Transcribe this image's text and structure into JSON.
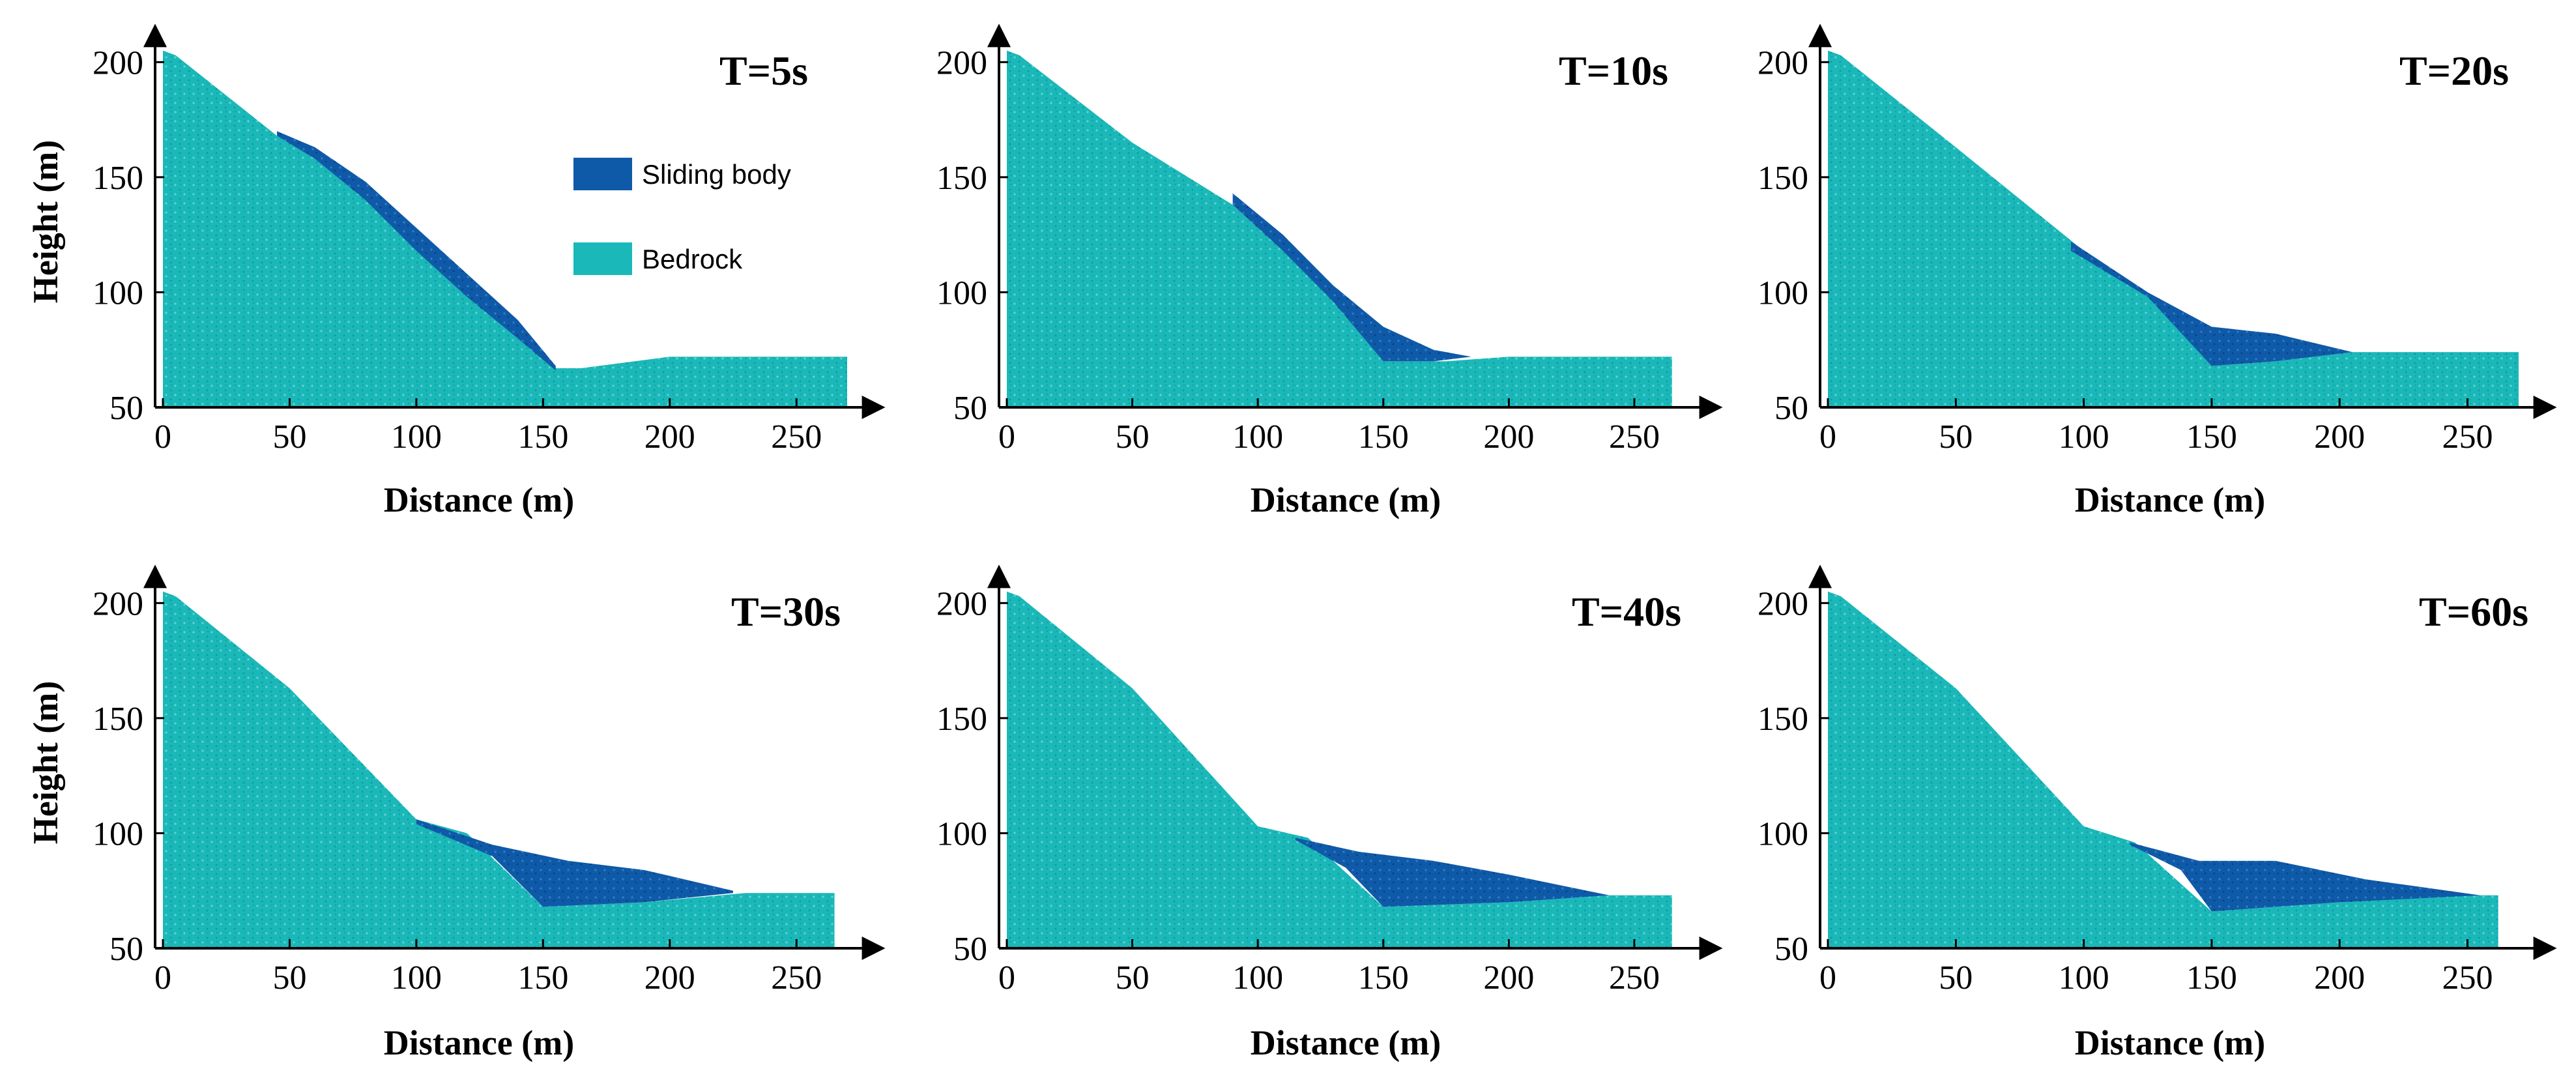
{
  "figure": {
    "type": "area",
    "description_labels": {
      "xlabel": "Distance (m)",
      "ylabel": "Height (m)"
    }
  },
  "legend": [
    {
      "label": "Sliding body",
      "color": "#0f5aa8"
    },
    {
      "label": "Bedrock",
      "color": "#1ab8b8"
    }
  ],
  "chart_data": [
    {
      "type": "area",
      "title": "T=5s",
      "xlabel": "Distance (m)",
      "ylabel": "Height (m)",
      "xlim": [
        0,
        270
      ],
      "ylim": [
        50,
        210
      ],
      "xticks": [
        0,
        50,
        100,
        150,
        200,
        250
      ],
      "yticks": [
        50,
        100,
        150,
        200
      ],
      "series": [
        {
          "name": "Bedrock",
          "color": "#1ab8b8",
          "x": [
            0,
            5,
            45,
            80,
            120,
            155,
            165,
            200,
            270
          ],
          "y": [
            205,
            203,
            168,
            145,
            108,
            67,
            67,
            72,
            72
          ]
        },
        {
          "name": "Sliding body",
          "color": "#0f5aa8",
          "top_x": [
            45,
            60,
            80,
            100,
            120,
            140,
            155
          ],
          "top_y": [
            170,
            163,
            148,
            128,
            108,
            88,
            68
          ],
          "bottom_x": [
            45,
            60,
            80,
            100,
            120,
            140,
            155
          ],
          "bottom_y": [
            168,
            158,
            140,
            118,
            98,
            80,
            66
          ]
        }
      ]
    },
    {
      "type": "area",
      "title": "T=10s",
      "xlabel": "Distance (m)",
      "ylabel": "Height (m)",
      "xlim": [
        0,
        270
      ],
      "ylim": [
        50,
        210
      ],
      "xticks": [
        0,
        50,
        100,
        150,
        200,
        250
      ],
      "yticks": [
        50,
        100,
        150,
        200
      ],
      "series": [
        {
          "name": "Bedrock",
          "color": "#1ab8b8",
          "x": [
            0,
            5,
            50,
            90,
            130,
            150,
            175,
            200,
            265
          ],
          "y": [
            205,
            203,
            165,
            138,
            98,
            70,
            70,
            72,
            72
          ]
        },
        {
          "name": "Sliding body",
          "color": "#0f5aa8",
          "top_x": [
            90,
            110,
            130,
            150,
            170,
            185
          ],
          "top_y": [
            143,
            125,
            103,
            85,
            75,
            72
          ],
          "bottom_x": [
            90,
            110,
            130,
            150,
            170,
            185
          ],
          "bottom_y": [
            138,
            118,
            96,
            70,
            70,
            72
          ]
        }
      ]
    },
    {
      "type": "area",
      "title": "T=20s",
      "xlabel": "Distance (m)",
      "ylabel": "Height (m)",
      "xlim": [
        0,
        270
      ],
      "ylim": [
        50,
        210
      ],
      "xticks": [
        0,
        50,
        100,
        150,
        200,
        250
      ],
      "yticks": [
        50,
        100,
        150,
        200
      ],
      "series": [
        {
          "name": "Bedrock",
          "color": "#1ab8b8",
          "x": [
            0,
            5,
            50,
            100,
            125,
            150,
            175,
            205,
            270
          ],
          "y": [
            205,
            203,
            163,
            118,
            100,
            68,
            70,
            74,
            74
          ]
        },
        {
          "name": "Sliding body",
          "color": "#0f5aa8",
          "top_x": [
            95,
            125,
            150,
            175,
            205
          ],
          "top_y": [
            122,
            100,
            85,
            82,
            74
          ],
          "bottom_x": [
            95,
            125,
            150,
            175,
            205
          ],
          "bottom_y": [
            118,
            98,
            68,
            70,
            74
          ]
        }
      ]
    },
    {
      "type": "area",
      "title": "T=30s",
      "xlabel": "Distance (m)",
      "ylabel": "Height (m)",
      "xlim": [
        0,
        270
      ],
      "ylim": [
        50,
        210
      ],
      "xticks": [
        0,
        50,
        100,
        150,
        200,
        250
      ],
      "yticks": [
        50,
        100,
        150,
        200
      ],
      "series": [
        {
          "name": "Bedrock",
          "color": "#1ab8b8",
          "x": [
            0,
            5,
            50,
            100,
            120,
            150,
            190,
            230,
            265
          ],
          "y": [
            205,
            203,
            163,
            106,
            100,
            68,
            70,
            74,
            74
          ]
        },
        {
          "name": "Sliding body",
          "color": "#0f5aa8",
          "top_x": [
            100,
            130,
            160,
            190,
            225
          ],
          "top_y": [
            106,
            95,
            88,
            84,
            75
          ],
          "bottom_x": [
            100,
            130,
            150,
            190,
            225
          ],
          "bottom_y": [
            104,
            90,
            68,
            70,
            74
          ]
        }
      ]
    },
    {
      "type": "area",
      "title": "T=40s",
      "xlabel": "Distance (m)",
      "ylabel": "Height (m)",
      "xlim": [
        0,
        270
      ],
      "ylim": [
        50,
        210
      ],
      "xticks": [
        0,
        50,
        100,
        150,
        200,
        250
      ],
      "yticks": [
        50,
        100,
        150,
        200
      ],
      "series": [
        {
          "name": "Bedrock",
          "color": "#1ab8b8",
          "x": [
            0,
            5,
            50,
            100,
            120,
            150,
            200,
            240,
            265
          ],
          "y": [
            205,
            203,
            163,
            103,
            98,
            68,
            70,
            73,
            73
          ]
        },
        {
          "name": "Sliding body",
          "color": "#0f5aa8",
          "top_x": [
            115,
            140,
            170,
            200,
            240
          ],
          "top_y": [
            98,
            92,
            88,
            82,
            73
          ],
          "bottom_x": [
            115,
            135,
            150,
            200,
            240
          ],
          "bottom_y": [
            97,
            85,
            68,
            70,
            73
          ]
        }
      ]
    },
    {
      "type": "area",
      "title": "T=60s",
      "xlabel": "Distance (m)",
      "ylabel": "Height (m)",
      "xlim": [
        0,
        270
      ],
      "ylim": [
        50,
        210
      ],
      "xticks": [
        0,
        50,
        100,
        150,
        200,
        250
      ],
      "yticks": [
        50,
        100,
        150,
        200
      ],
      "series": [
        {
          "name": "Bedrock",
          "color": "#1ab8b8",
          "x": [
            0,
            5,
            50,
            100,
            120,
            150,
            200,
            240,
            262
          ],
          "y": [
            205,
            203,
            163,
            103,
            96,
            66,
            70,
            73,
            73
          ]
        },
        {
          "name": "Sliding body",
          "color": "#0f5aa8",
          "top_x": [
            118,
            145,
            175,
            210,
            255
          ],
          "top_y": [
            96,
            88,
            88,
            80,
            73
          ],
          "bottom_x": [
            118,
            138,
            150,
            200,
            255
          ],
          "bottom_y": [
            95,
            84,
            66,
            70,
            73
          ]
        }
      ]
    }
  ]
}
